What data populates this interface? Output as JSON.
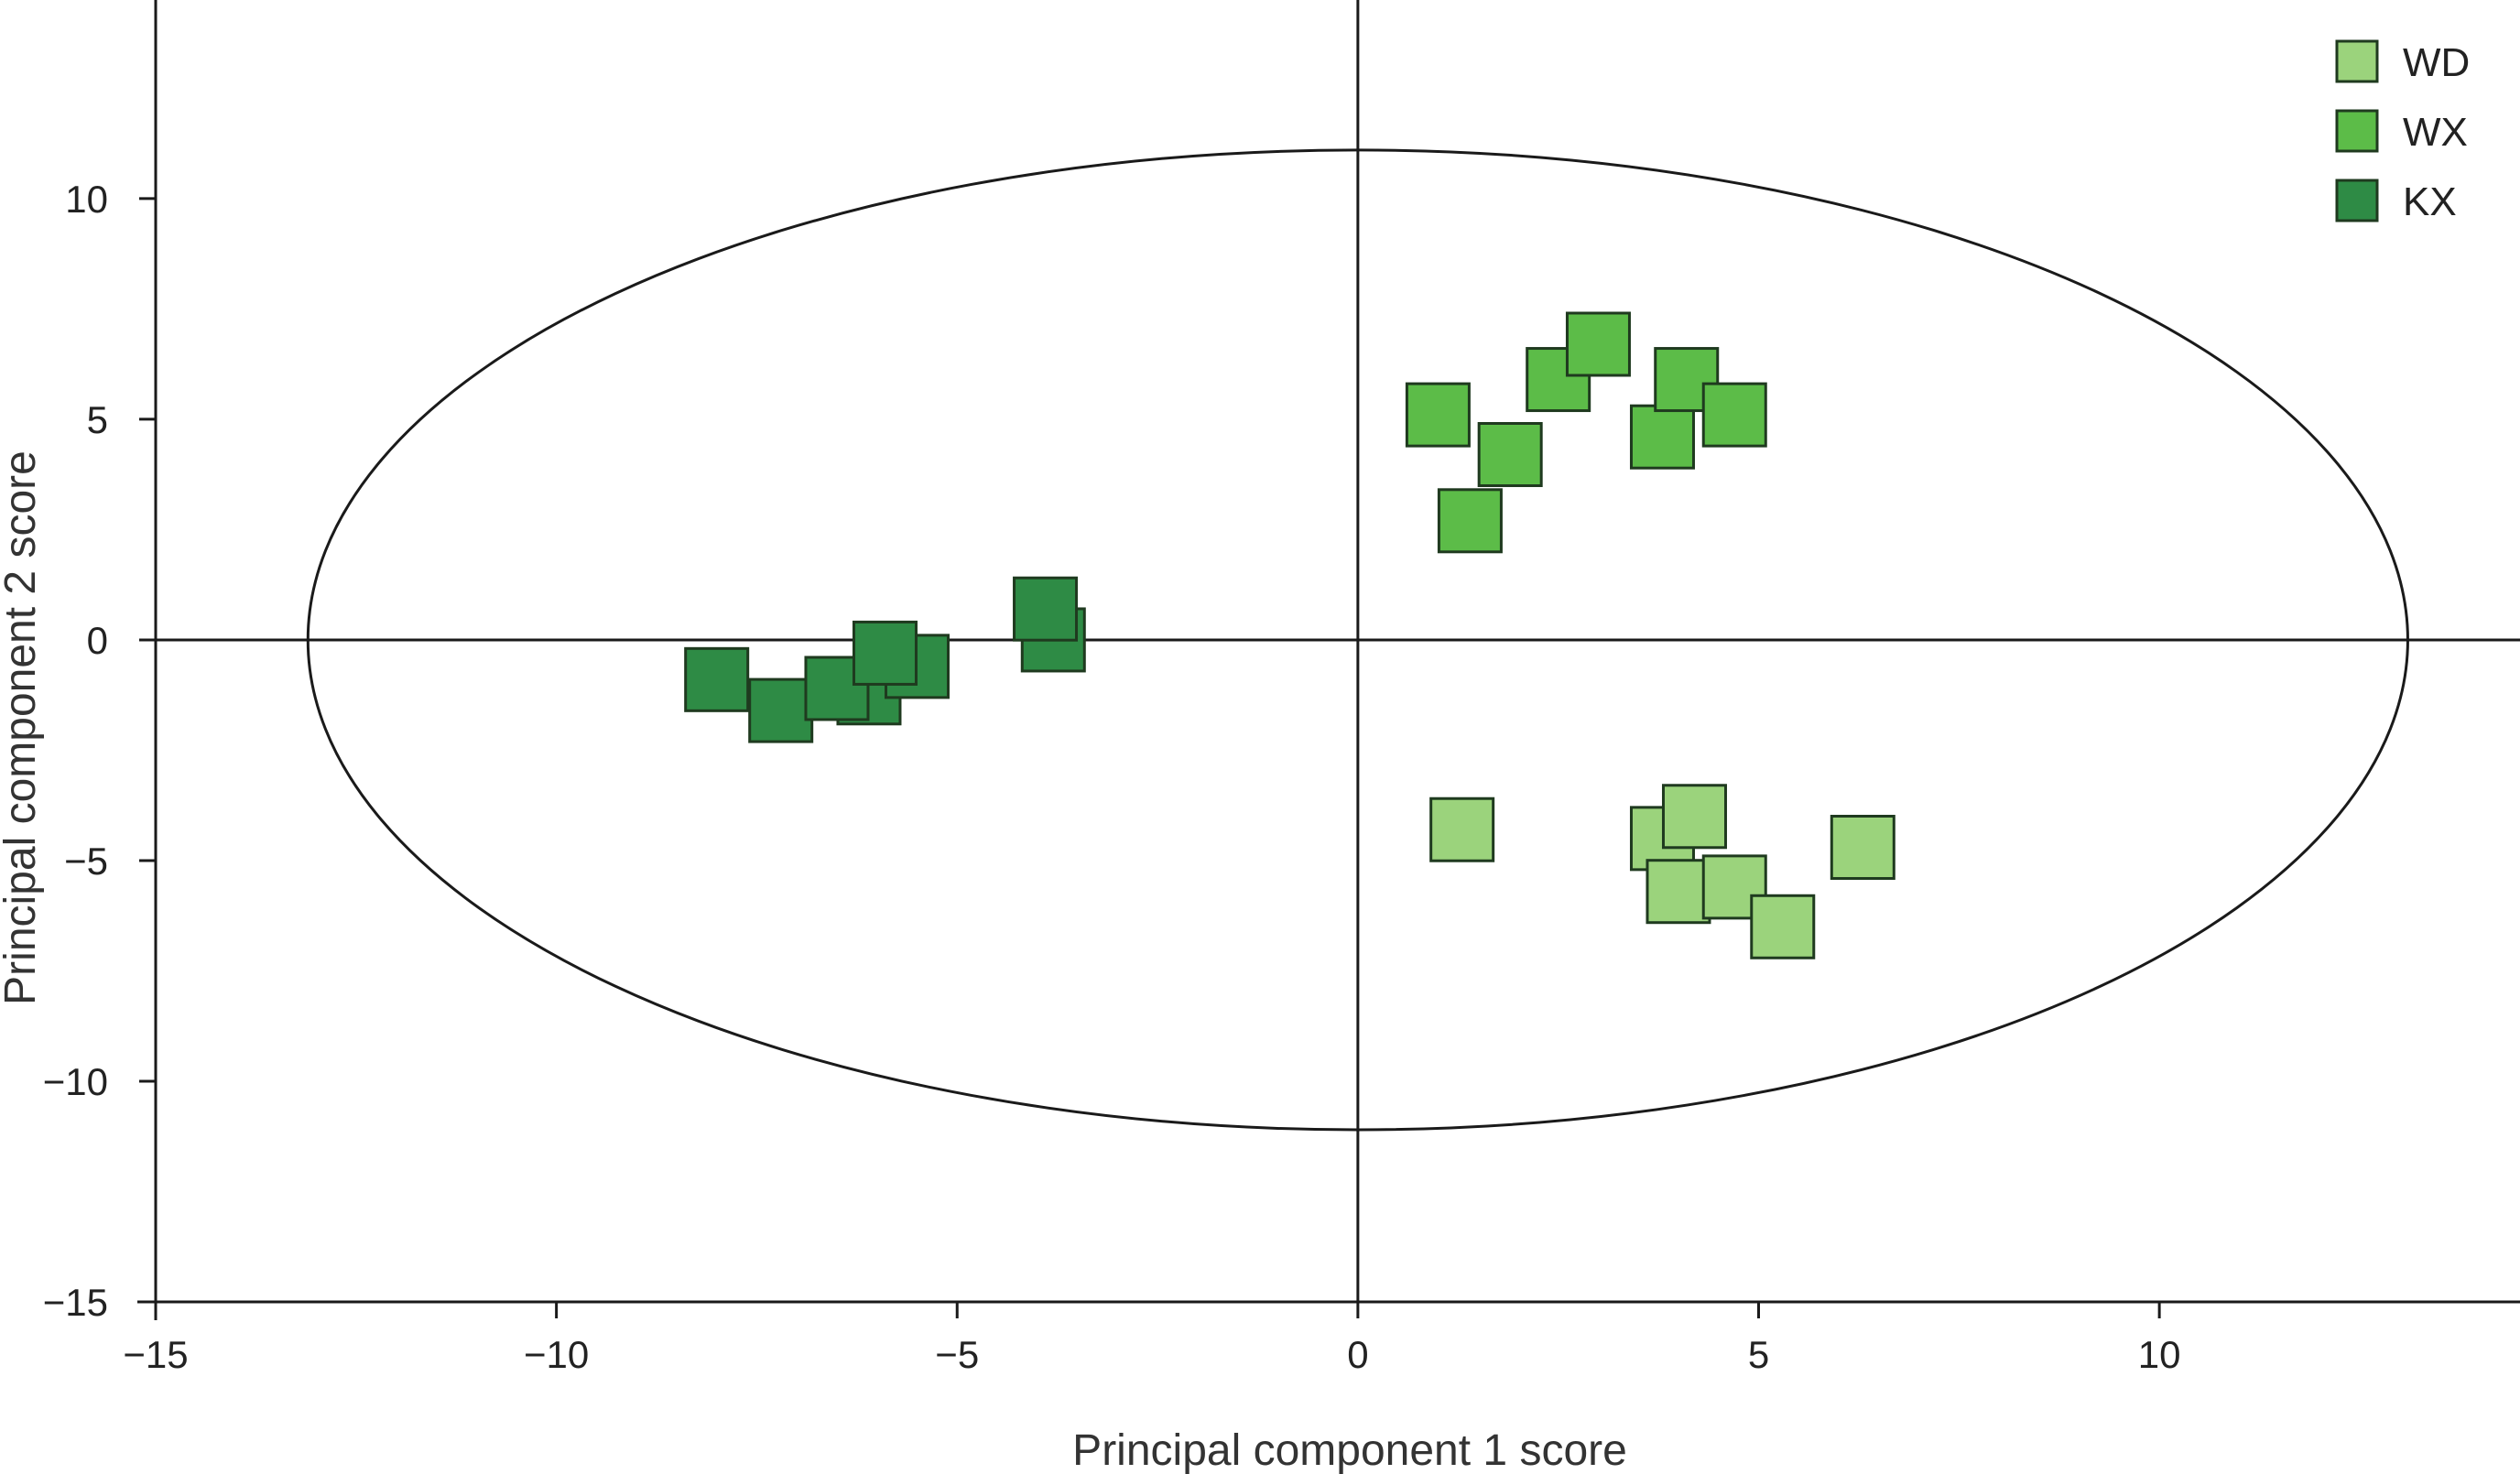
{
  "chart_data": {
    "type": "scatter",
    "xlabel": "Principal component 1 score",
    "ylabel": "Principal component 2 score",
    "xlim": [
      -15,
      14.5
    ],
    "ylim": [
      -15,
      14.5
    ],
    "xticks": [
      -15,
      -10,
      -5,
      0,
      5,
      10
    ],
    "yticks": [
      -15,
      -10,
      -5,
      0,
      5,
      10
    ],
    "xtick_labels": [
      "−15",
      "−10",
      "−5",
      "0",
      "5",
      "10"
    ],
    "ytick_labels": [
      "−15",
      "−10",
      "−5",
      "0",
      "5",
      "10"
    ],
    "grid": false,
    "legend_position": "top-right",
    "ellipse": {
      "cx": 0,
      "cy": 0,
      "rx": 13.1,
      "ry": 11.1
    },
    "series": [
      {
        "name": "WD",
        "color": "#9bd37c",
        "x": [
          1.3,
          3.8,
          4.2,
          4.0,
          4.7,
          5.3,
          6.3
        ],
        "y": [
          -4.3,
          -4.5,
          -4.0,
          -5.7,
          -5.6,
          -6.5,
          -4.7
        ]
      },
      {
        "name": "WX",
        "color": "#5cbc48",
        "x": [
          1.0,
          1.4,
          1.9,
          2.5,
          3.0,
          3.8,
          4.1,
          4.7
        ],
        "y": [
          5.1,
          2.7,
          4.2,
          5.9,
          6.7,
          4.6,
          5.9,
          5.1
        ]
      },
      {
        "name": "KX",
        "color": "#2e8b45",
        "x": [
          -8.0,
          -7.2,
          -6.1,
          -6.5,
          -5.5,
          -5.9,
          -3.8,
          -3.9
        ],
        "y": [
          -0.9,
          -1.6,
          -1.2,
          -1.1,
          -0.6,
          -0.3,
          0.0,
          0.7
        ]
      }
    ]
  }
}
